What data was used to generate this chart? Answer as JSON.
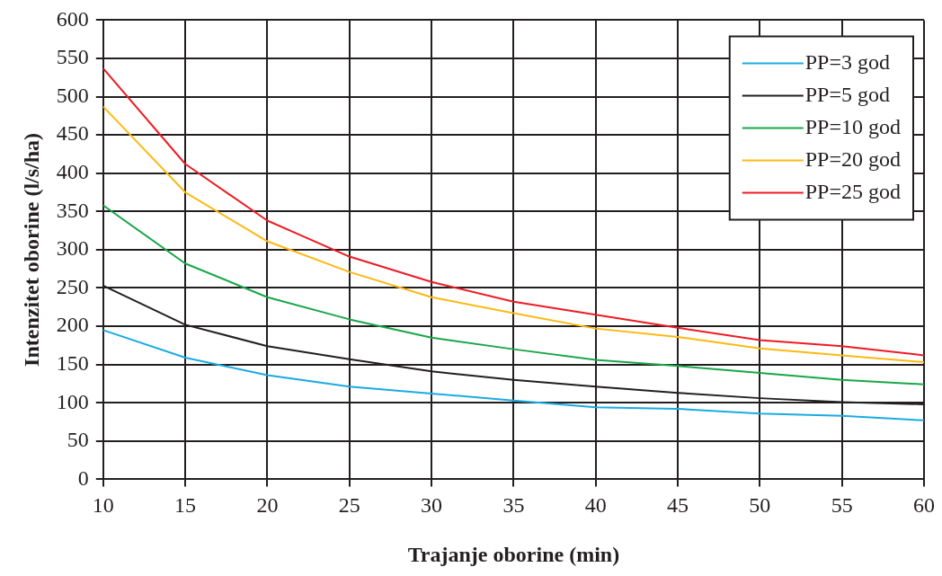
{
  "chart_data": {
    "type": "line",
    "xlabel": "Trajanje oborine (min)",
    "ylabel": "Intenzitet oborine (l/s/ha)",
    "x": [
      10,
      15,
      20,
      25,
      30,
      35,
      40,
      45,
      50,
      55,
      60
    ],
    "xlim": [
      10,
      60
    ],
    "xticks": [
      10,
      15,
      20,
      25,
      30,
      35,
      40,
      45,
      50,
      55,
      60
    ],
    "ylim": [
      0,
      600
    ],
    "yticks": [
      0,
      50,
      100,
      150,
      200,
      250,
      300,
      350,
      400,
      450,
      500,
      550,
      600
    ],
    "grid": true,
    "legend": "top right",
    "marker": "none",
    "line_style": "solid",
    "series": [
      {
        "name": "PP=3 god",
        "color": "#1aabe2",
        "values": [
          195,
          159,
          136,
          121,
          112,
          103,
          94,
          92,
          86,
          83,
          77
        ]
      },
      {
        "name": "PP=5 god",
        "color": "#231f20",
        "values": [
          253,
          202,
          174,
          157,
          141,
          130,
          121,
          113,
          106,
          101,
          98
        ]
      },
      {
        "name": "PP=10 god",
        "color": "#1aa64a",
        "values": [
          358,
          282,
          238,
          209,
          185,
          170,
          156,
          148,
          139,
          130,
          124
        ]
      },
      {
        "name": "PP=20 god",
        "color": "#fdb913",
        "values": [
          487,
          375,
          311,
          271,
          238,
          217,
          197,
          186,
          171,
          162,
          153
        ]
      },
      {
        "name": "PP=25 god",
        "color": "#ed1c24",
        "values": [
          537,
          412,
          338,
          291,
          258,
          232,
          215,
          198,
          182,
          174,
          162
        ]
      }
    ]
  }
}
